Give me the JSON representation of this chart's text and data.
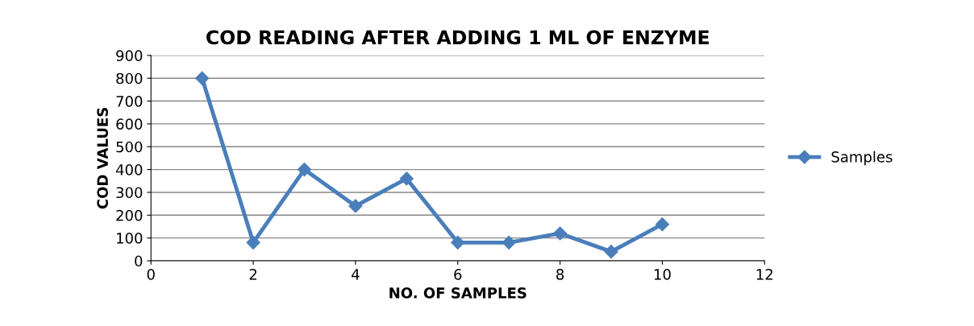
{
  "chart_data": {
    "type": "line",
    "title": "COD READING AFTER ADDING 1 ML OF ENZYME",
    "xlabel": "NO. OF SAMPLES",
    "ylabel": "COD VALUES",
    "x": [
      1,
      2,
      3,
      4,
      5,
      6,
      7,
      8,
      9,
      10
    ],
    "series": [
      {
        "name": "Samples",
        "color": "#4a7ebb",
        "values": [
          800,
          80,
          400,
          240,
          360,
          80,
          80,
          120,
          40,
          160
        ]
      }
    ],
    "xlim": [
      0,
      12
    ],
    "xticks": [
      0,
      2,
      4,
      6,
      8,
      10,
      12
    ],
    "ylim": [
      0,
      900
    ],
    "yticks": [
      0,
      100,
      200,
      300,
      400,
      500,
      600,
      700,
      800,
      900
    ],
    "grid": "y",
    "legend": "right",
    "marker": "diamond",
    "line_style": "solid"
  }
}
